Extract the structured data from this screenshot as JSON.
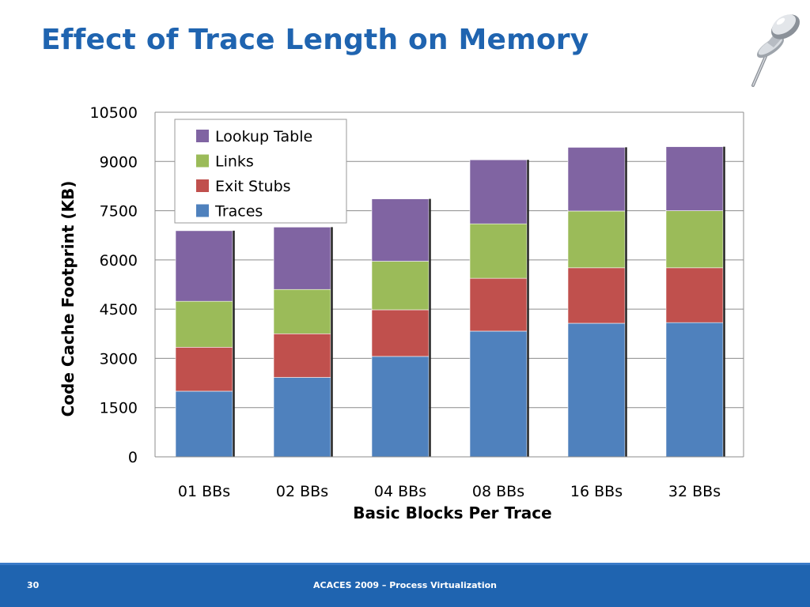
{
  "slide": {
    "title": "Effect of Trace Length on Memory",
    "page_number": "30",
    "footer": "ACACES 2009 – Process Virtualization"
  },
  "colors": {
    "title": "#1f64b0",
    "footer_bar": "#1f64b0",
    "series": [
      "#4f81bd",
      "#c0504d",
      "#9bbb59",
      "#8064a2"
    ]
  },
  "icons": {
    "decoration": "pushpin-icon"
  },
  "chart_data": {
    "type": "bar",
    "stacked": true,
    "categories": [
      "01 BBs",
      "02 BBs",
      "04 BBs",
      "08 BBs",
      "16 BBs",
      "32 BBs"
    ],
    "series": [
      {
        "name": "Traces",
        "values": [
          2000,
          2420,
          3060,
          3830,
          4070,
          4090
        ]
      },
      {
        "name": "Exit Stubs",
        "values": [
          1340,
          1330,
          1420,
          1610,
          1690,
          1670
        ]
      },
      {
        "name": "Links",
        "values": [
          1400,
          1350,
          1480,
          1660,
          1730,
          1740
        ]
      },
      {
        "name": "Lookup Table",
        "values": [
          2150,
          1900,
          1900,
          1950,
          1940,
          1950
        ]
      }
    ],
    "title": "",
    "xlabel": "Basic Blocks Per Trace",
    "ylabel": "Code Cache Footprint (KB)",
    "ylim": [
      0,
      10500
    ],
    "yticks": [
      0,
      1500,
      3000,
      4500,
      6000,
      7500,
      9000,
      10500
    ],
    "grid": true,
    "legend_position": "top-left",
    "legend_order": [
      "Lookup Table",
      "Links",
      "Exit Stubs",
      "Traces"
    ]
  }
}
